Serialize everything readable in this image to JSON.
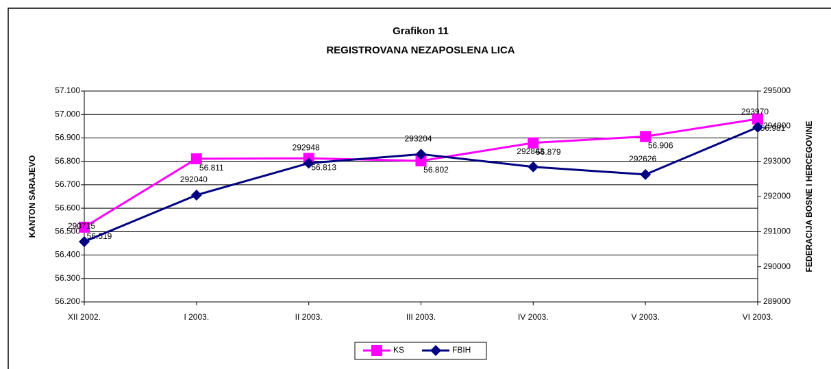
{
  "chart_data": {
    "type": "line",
    "title": "Grafikon 11",
    "subtitle": "REGISTROVANA NEZAPOSLENA LICA",
    "y_label": "KANTON SARAJEVO",
    "y2_label": "FEDERACIJA BOSNE I HERCEGOVINE",
    "categories": [
      "XII 2002.",
      "I 2003.",
      "II 2003.",
      "III 2003.",
      "IV  2003.",
      "V 2003.",
      "VI  2003."
    ],
    "series": [
      {
        "name": "KS",
        "color": "#ff00ff",
        "marker": "square",
        "values": [
          56.519,
          56.811,
          56.813,
          56.802,
          56.879,
          56.906,
          56.981
        ]
      },
      {
        "name": "FBIH",
        "color": "#000080",
        "marker": "diamond",
        "axis": "y2",
        "values": [
          290715,
          292040,
          292948,
          293204,
          292843,
          292626,
          293970
        ]
      }
    ],
    "ylim": [
      56.2,
      57.1
    ],
    "yticks": [
      {
        "value": 56.2,
        "label": "56.200"
      },
      {
        "value": 56.3,
        "label": "56.300"
      },
      {
        "value": 56.4,
        "label": "56.400"
      },
      {
        "value": 56.5,
        "label": "56.500"
      },
      {
        "value": 56.6,
        "label": "56.600"
      },
      {
        "value": 56.7,
        "label": "56.700"
      },
      {
        "value": 56.8,
        "label": "56.800"
      },
      {
        "value": 56.9,
        "label": "56.900"
      },
      {
        "value": 57.0,
        "label": "57.000"
      },
      {
        "value": 57.1,
        "label": "57.100"
      }
    ],
    "y2lim": [
      289000,
      295000
    ],
    "y2ticks": [
      289000,
      290000,
      291000,
      292000,
      293000,
      294000,
      295000
    ],
    "grid": true,
    "legend": "bottom"
  }
}
